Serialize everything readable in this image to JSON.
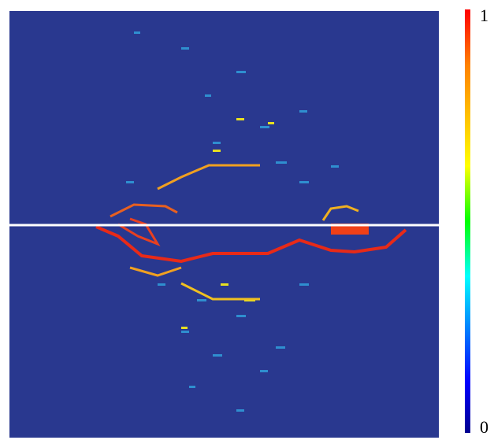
{
  "chart_data": {
    "type": "heatmap",
    "clim": [
      0,
      1
    ],
    "cticks": [
      0,
      1
    ]
  }
}
